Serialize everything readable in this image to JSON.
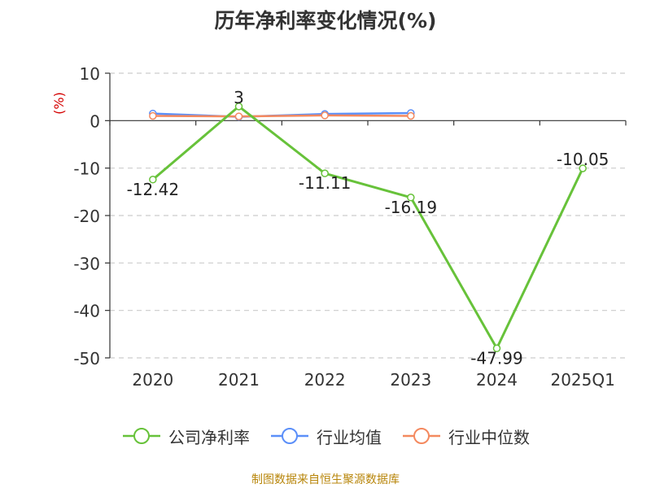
{
  "chart_data": {
    "type": "line",
    "title": "历年净利率变化情况(%)",
    "ylabel": "(%)",
    "xlabel": "",
    "categories": [
      "2020",
      "2021",
      "2022",
      "2023",
      "2024",
      "2025Q1"
    ],
    "ylim": [
      -50,
      10
    ],
    "yticks": [
      10,
      0,
      -10,
      -20,
      -30,
      -40,
      -50
    ],
    "grid": true,
    "legend_position": "bottom",
    "series": [
      {
        "name": "公司净利率",
        "color": "#67c23a",
        "values": [
          -12.42,
          3,
          -11.11,
          -16.19,
          -47.99,
          -10.05
        ],
        "labels": [
          "-12.42",
          "3",
          "-11.11",
          "-16.19",
          "-47.99",
          "-10.05"
        ]
      },
      {
        "name": "行业均值",
        "color": "#5b8ff9",
        "values": [
          1.5,
          0.8,
          1.4,
          1.6,
          null,
          null
        ]
      },
      {
        "name": "行业中位数",
        "color": "#f4895f",
        "values": [
          1.0,
          0.9,
          1.1,
          1.0,
          null,
          null
        ]
      }
    ]
  },
  "source": "制图数据来自恒生聚源数据库"
}
